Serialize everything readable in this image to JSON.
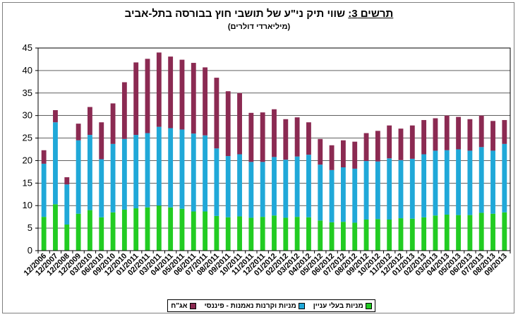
{
  "title": {
    "label": "תרשים 3:",
    "text": "שווי תיק ני\"ע של תושבי חוץ בבורסה בתל-אביב"
  },
  "subtitle": "(מיליארדי דולרים)",
  "chart_data": {
    "type": "bar",
    "stacked": true,
    "ylim": [
      0,
      45
    ],
    "yticks": [
      0,
      5,
      10,
      15,
      20,
      25,
      30,
      35,
      40,
      45
    ],
    "grid": true,
    "legend_position": "bottom",
    "categories": [
      "12/2006",
      "12/2007",
      "12/2008",
      "12/2009",
      "03/2010",
      "06/2010",
      "09/2010",
      "12/2010",
      "01/2011",
      "02/2011",
      "03/2011",
      "04/2011",
      "05/2011",
      "06/2011",
      "07/2011",
      "08/2011",
      "09/2011",
      "10/2011",
      "11/2011",
      "12/2011",
      "01/2012",
      "02/2012",
      "03/2012",
      "04/2012",
      "05/2012",
      "06/2012",
      "07/2012",
      "08/2012",
      "09/2012",
      "10/2012",
      "11/2012",
      "12/2012",
      "01/2013",
      "02/2013",
      "03/2013",
      "04/2013",
      "05/2013",
      "06/2013",
      "07/2013",
      "08/2013",
      "09/2013"
    ],
    "series": [
      {
        "name": "מניות בעלי עניין",
        "color": "#22cc22",
        "values": [
          7.5,
          10.3,
          5.8,
          8.2,
          9.0,
          7.4,
          8.5,
          9.1,
          9.4,
          9.6,
          10.0,
          9.6,
          9.3,
          8.7,
          8.7,
          7.7,
          7.4,
          7.6,
          7.3,
          7.5,
          7.8,
          7.3,
          7.5,
          7.4,
          6.7,
          6.3,
          6.4,
          6.2,
          6.9,
          7.0,
          6.9,
          7.2,
          7.1,
          7.4,
          7.8,
          8.0,
          7.9,
          7.9,
          8.4,
          8.2,
          8.5
        ]
      },
      {
        "name": "מניות וקרנות נאמנות - פיננסי",
        "color": "#20a8d8",
        "values": [
          11.8,
          18.2,
          8.9,
          16.3,
          16.7,
          12.9,
          15.2,
          15.7,
          16.3,
          16.5,
          17.5,
          17.6,
          17.6,
          17.3,
          16.9,
          15.0,
          13.6,
          13.8,
          12.4,
          12.2,
          13.0,
          12.9,
          13.4,
          13.9,
          12.4,
          11.6,
          12.1,
          12.0,
          13.0,
          12.8,
          13.6,
          12.9,
          13.3,
          14.0,
          14.4,
          14.3,
          14.6,
          14.3,
          14.6,
          14.0,
          15.2
        ]
      },
      {
        "name": "אג\"ח",
        "color": "#8b2a52",
        "values": [
          3.0,
          2.7,
          1.6,
          3.7,
          6.2,
          8.2,
          9.0,
          12.6,
          16.1,
          16.5,
          16.5,
          15.9,
          15.5,
          15.7,
          15.1,
          15.7,
          14.4,
          13.6,
          10.9,
          11.0,
          10.6,
          9.0,
          8.7,
          7.2,
          5.7,
          5.5,
          6.0,
          6.0,
          6.2,
          6.8,
          7.3,
          7.0,
          7.4,
          7.6,
          7.2,
          7.7,
          7.2,
          7.0,
          7.0,
          6.6,
          5.3
        ]
      }
    ]
  },
  "legend": {
    "items": [
      {
        "label": "אג\"ח",
        "color": "#8b2a52"
      },
      {
        "label": "מניות וקרנות נאמנות - פיננסי",
        "color": "#20a8d8"
      },
      {
        "label": "מניות בעלי עניין",
        "color": "#22cc22"
      }
    ]
  }
}
